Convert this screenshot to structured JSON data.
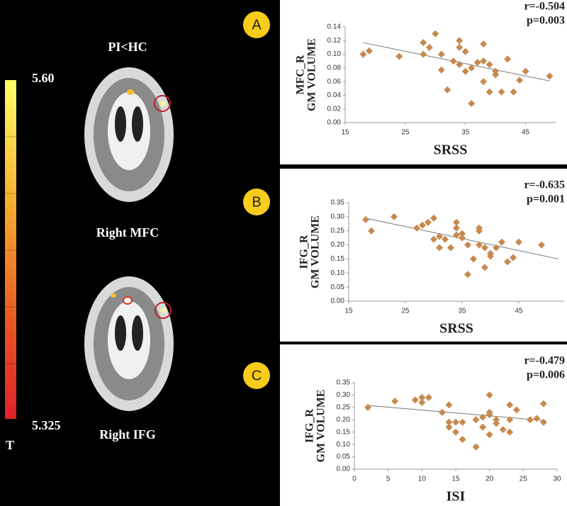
{
  "figure": {
    "contrast": "PI<HC",
    "regions": [
      "Right MFC",
      "Right IFG"
    ],
    "colorbar": {
      "max_label": "5.60",
      "min_label": "5.325",
      "unit": "T"
    },
    "panels": [
      "A",
      "B",
      "C"
    ]
  },
  "chart_data": [
    {
      "type": "scatter",
      "stat_r": "r=-0.504",
      "stat_p": "p=0.003",
      "x_label": "SRSS",
      "y_label": [
        "MFC_R",
        "GM  VOLUME"
      ],
      "xlim": [
        15,
        50
      ],
      "xticks": [
        15,
        25,
        35,
        45
      ],
      "ylim": [
        0,
        0.14
      ],
      "yticks": [
        {
          "value": 0,
          "label": "0.00"
        },
        {
          "value": 0.02,
          "label": "0.02"
        },
        {
          "value": 0.04,
          "label": "0.04"
        },
        {
          "value": 0.06,
          "label": "0.06"
        },
        {
          "value": 0.08,
          "label": "0.08"
        },
        {
          "value": 0.1,
          "label": "0.10"
        },
        {
          "value": 0.12,
          "label": "0.12"
        },
        {
          "value": 0.14,
          "label": "0.14"
        }
      ],
      "color": "#c8894e",
      "trend": {
        "x": [
          18,
          49
        ],
        "y": [
          0.117,
          0.061
        ]
      },
      "x": [
        18,
        19,
        24,
        28,
        28,
        29,
        30,
        31,
        31,
        32,
        33,
        34,
        34,
        34,
        35,
        35,
        36,
        36,
        37,
        38,
        38,
        38,
        39,
        39,
        40,
        40,
        41,
        42,
        43,
        44,
        45,
        49
      ],
      "values": [
        0.1,
        0.105,
        0.097,
        0.1,
        0.117,
        0.11,
        0.13,
        0.1,
        0.077,
        0.048,
        0.09,
        0.12,
        0.11,
        0.085,
        0.104,
        0.075,
        0.028,
        0.08,
        0.088,
        0.115,
        0.09,
        0.06,
        0.085,
        0.045,
        0.07,
        0.075,
        0.045,
        0.093,
        0.045,
        0.062,
        0.075,
        0.068
      ]
    },
    {
      "type": "scatter",
      "stat_r": "r=-0.635",
      "stat_p": "p=0.001",
      "x_label": "SRSS",
      "y_label": [
        "IFG_R",
        "GM  VOLUME"
      ],
      "xlim": [
        15,
        53
      ],
      "xticks": [
        15,
        25,
        35,
        45
      ],
      "ylim": [
        0,
        0.35
      ],
      "yticks": [
        {
          "value": 0,
          "label": "0.00"
        },
        {
          "value": 0.05,
          "label": "0.05"
        },
        {
          "value": 0.1,
          "label": "0.10"
        },
        {
          "value": 0.15,
          "label": "0.15"
        },
        {
          "value": 0.2,
          "label": "0.20"
        },
        {
          "value": 0.25,
          "label": "0.25"
        },
        {
          "value": 0.3,
          "label": "0.30"
        },
        {
          "value": 0.35,
          "label": "0.35"
        }
      ],
      "color": "#c8894e",
      "trend": {
        "x": [
          18,
          52
        ],
        "y": [
          0.295,
          0.15
        ]
      },
      "x": [
        18,
        19,
        23,
        27,
        28,
        29,
        30,
        30,
        31,
        31,
        32,
        33,
        34,
        34,
        34,
        35,
        35,
        36,
        36,
        37,
        38,
        38,
        38,
        39,
        39,
        40,
        40,
        41,
        42,
        43,
        44,
        45,
        49
      ],
      "values": [
        0.29,
        0.25,
        0.3,
        0.26,
        0.27,
        0.28,
        0.295,
        0.22,
        0.19,
        0.23,
        0.22,
        0.19,
        0.28,
        0.26,
        0.235,
        0.24,
        0.225,
        0.2,
        0.095,
        0.15,
        0.25,
        0.26,
        0.2,
        0.19,
        0.12,
        0.17,
        0.16,
        0.19,
        0.21,
        0.14,
        0.155,
        0.21,
        0.2
      ]
    },
    {
      "type": "scatter",
      "stat_r": "r=-0.479",
      "stat_p": "p=0.006",
      "x_label": "ISI",
      "y_label": [
        "IFG_R",
        "GM  VOLUME"
      ],
      "xlim": [
        0,
        30
      ],
      "xticks": [
        0,
        5,
        10,
        15,
        20,
        25,
        30
      ],
      "ylim": [
        0,
        0.35
      ],
      "yticks": [
        {
          "value": 0,
          "label": "0.00"
        },
        {
          "value": 0.05,
          "label": "0.05"
        },
        {
          "value": 0.1,
          "label": "0.10"
        },
        {
          "value": 0.15,
          "label": "0.15"
        },
        {
          "value": 0.2,
          "label": "0.20"
        },
        {
          "value": 0.25,
          "label": "0.25"
        },
        {
          "value": 0.3,
          "label": "0.30"
        },
        {
          "value": 0.35,
          "label": "0.35"
        }
      ],
      "color": "#c8894e",
      "trend": {
        "x": [
          2,
          28
        ],
        "y": [
          0.258,
          0.197
        ]
      },
      "x": [
        2,
        6,
        9,
        10,
        10,
        11,
        13,
        14,
        14,
        14,
        15,
        15,
        16,
        16,
        18,
        18,
        19,
        19,
        20,
        20,
        20,
        20,
        21,
        21,
        22,
        23,
        23,
        23,
        24,
        26,
        27,
        28,
        28
      ],
      "values": [
        0.25,
        0.275,
        0.28,
        0.27,
        0.29,
        0.29,
        0.23,
        0.26,
        0.19,
        0.17,
        0.19,
        0.15,
        0.12,
        0.19,
        0.09,
        0.2,
        0.21,
        0.17,
        0.3,
        0.23,
        0.22,
        0.14,
        0.185,
        0.2,
        0.16,
        0.26,
        0.2,
        0.15,
        0.24,
        0.2,
        0.205,
        0.19,
        0.265
      ]
    }
  ]
}
